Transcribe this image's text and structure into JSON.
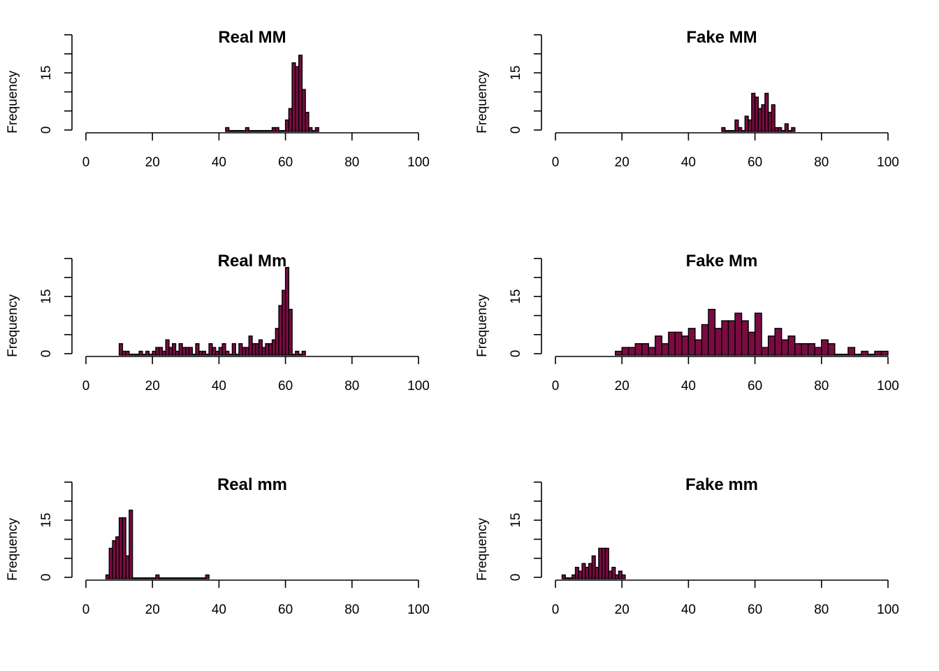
{
  "figure": {
    "bar_color": "#7a0c42",
    "outline_color": "#000000",
    "background": "#ffffff"
  },
  "chart_data": [
    {
      "type": "bar",
      "title": "Real MM",
      "xlabel": "",
      "ylabel": "Frequency",
      "xlim": [
        0,
        100
      ],
      "ylim": [
        0,
        25
      ],
      "xticks": [
        "0",
        "20",
        "40",
        "60",
        "80",
        "100"
      ],
      "yticks": [
        "0",
        "15"
      ],
      "bin_width": 1,
      "bin_start": 42,
      "values": [
        1,
        0,
        0,
        0,
        0,
        0,
        1,
        0,
        0,
        0,
        0,
        0,
        0,
        0,
        1,
        1,
        0,
        0,
        3,
        6,
        18,
        17,
        20,
        11,
        5,
        1,
        0,
        1
      ]
    },
    {
      "type": "bar",
      "title": "Fake MM",
      "xlabel": "",
      "ylabel": "Frequency",
      "xlim": [
        0,
        100
      ],
      "ylim": [
        0,
        25
      ],
      "xticks": [
        "0",
        "20",
        "40",
        "60",
        "80",
        "100"
      ],
      "yticks": [
        "0",
        "15"
      ],
      "bin_width": 1,
      "bin_start": 50,
      "values": [
        1,
        0,
        0,
        0,
        3,
        1,
        0,
        4,
        3,
        10,
        9,
        6,
        7,
        10,
        5,
        7,
        1,
        1,
        0,
        2,
        0,
        1
      ]
    },
    {
      "type": "bar",
      "title": "Real Mm",
      "xlabel": "",
      "ylabel": "Frequency",
      "xlim": [
        0,
        100
      ],
      "ylim": [
        0,
        25
      ],
      "xticks": [
        "0",
        "20",
        "40",
        "60",
        "80",
        "100"
      ],
      "yticks": [
        "0",
        "15"
      ],
      "bin_width": 1,
      "bin_start": 10,
      "values": [
        3,
        1,
        1,
        0,
        0,
        0,
        1,
        0,
        1,
        0,
        1,
        2,
        2,
        1,
        4,
        2,
        3,
        1,
        3,
        2,
        2,
        2,
        0,
        3,
        1,
        1,
        0,
        3,
        2,
        1,
        2,
        3,
        1,
        0,
        3,
        0,
        3,
        2,
        2,
        5,
        3,
        3,
        4,
        2,
        3,
        3,
        4,
        7,
        13,
        17,
        23,
        12,
        0,
        1,
        0,
        1
      ]
    },
    {
      "type": "bar",
      "title": "Fake Mm",
      "xlabel": "",
      "ylabel": "Frequency",
      "xlim": [
        0,
        100
      ],
      "ylim": [
        0,
        25
      ],
      "xticks": [
        "0",
        "20",
        "40",
        "60",
        "80",
        "100"
      ],
      "yticks": [
        "0",
        "15"
      ],
      "bin_width": 2,
      "bin_start": 18,
      "values": [
        1,
        2,
        2,
        3,
        3,
        2,
        5,
        3,
        6,
        6,
        5,
        7,
        4,
        8,
        12,
        7,
        9,
        9,
        11,
        9,
        6,
        11,
        2,
        5,
        7,
        4,
        5,
        3,
        3,
        3,
        2,
        4,
        3,
        0,
        0,
        2,
        0,
        1,
        0,
        1,
        1
      ]
    },
    {
      "type": "bar",
      "title": "Real mm",
      "xlabel": "",
      "ylabel": "Frequency",
      "xlim": [
        0,
        100
      ],
      "ylim": [
        0,
        25
      ],
      "xticks": [
        "0",
        "20",
        "40",
        "60",
        "80",
        "100"
      ],
      "yticks": [
        "0",
        "15"
      ],
      "bin_width": 1,
      "bin_start": 6,
      "values": [
        1,
        8,
        10,
        11,
        16,
        16,
        6,
        18,
        0,
        0,
        0,
        0,
        0,
        0,
        0,
        1,
        0,
        0,
        0,
        0,
        0,
        0,
        0,
        0,
        0,
        0,
        0,
        0,
        0,
        0,
        1
      ]
    },
    {
      "type": "bar",
      "title": "Fake mm",
      "xlabel": "",
      "ylabel": "Frequency",
      "xlim": [
        0,
        100
      ],
      "ylim": [
        0,
        25
      ],
      "xticks": [
        "0",
        "20",
        "40",
        "60",
        "80",
        "100"
      ],
      "yticks": [
        "0",
        "15"
      ],
      "bin_width": 1,
      "bin_start": 2,
      "values": [
        1,
        0,
        0,
        1,
        3,
        2,
        4,
        3,
        4,
        6,
        3,
        8,
        8,
        8,
        2,
        3,
        1,
        2,
        1
      ]
    }
  ]
}
